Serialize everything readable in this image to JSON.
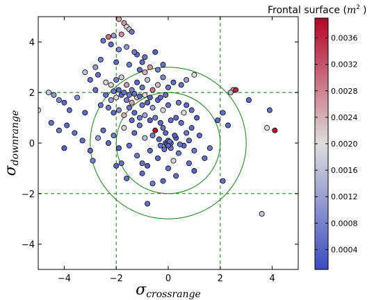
{
  "chart_data": {
    "type": "scatter",
    "title": "",
    "xlabel": "σ",
    "xlabel_sub": "crossrange",
    "ylabel": "σ",
    "ylabel_sub": "downrange",
    "xlim": [
      -5,
      5
    ],
    "ylim": [
      -5,
      5
    ],
    "xticks": [
      -4,
      -2,
      0,
      2,
      4
    ],
    "yticks": [
      -4,
      -2,
      0,
      2,
      4
    ],
    "xtick_labels": [
      "−4",
      "−2",
      "0",
      "2",
      "4"
    ],
    "ytick_labels": [
      "−4",
      "−2",
      "0",
      "2",
      "4"
    ],
    "grid": false,
    "reference_lines": {
      "vertical_x": [
        -2,
        2
      ],
      "horizontal_y": [
        -2,
        2
      ],
      "color": "#228b22",
      "style": "dashed"
    },
    "reference_circles": [
      {
        "cx": 0,
        "cy": 0,
        "r": 2
      },
      {
        "cx": 0,
        "cy": 0,
        "r": 3
      }
    ],
    "colorbar": {
      "title": "Frontal surface (",
      "title_unit": "m",
      "title_unit_exp": "2",
      "title_close": ")",
      "min": 0.0001,
      "max": 0.0039,
      "ticks": [
        0.0004,
        0.0008,
        0.0012,
        0.0016,
        0.002,
        0.0024,
        0.0028,
        0.0032,
        0.0036
      ],
      "tick_labels": [
        "0.0004",
        "0.0008",
        "0.0012",
        "0.0016",
        "0.0020",
        "0.0024",
        "0.0028",
        "0.0032",
        "0.0036"
      ],
      "colormap": "coolwarm",
      "color_low": "#3b4cc0",
      "color_mid": "#dddddd",
      "color_high": "#b40426"
    },
    "series": [
      {
        "points": [
          [
            -1.9,
            4.9,
            0.0025
          ],
          [
            -1.7,
            4.75,
            0.0026
          ],
          [
            -1.6,
            4.6,
            0.0018
          ],
          [
            -1.5,
            4.5,
            0.0023
          ],
          [
            -2.3,
            4.2,
            0.003
          ],
          [
            -2.1,
            4.25,
            0.0012
          ],
          [
            -1.8,
            4.3,
            0.0027
          ],
          [
            -1.4,
            4.4,
            0.0007
          ],
          [
            -2.5,
            4.05,
            0.0006
          ],
          [
            -2.2,
            3.9,
            0.0005
          ],
          [
            -1.9,
            3.7,
            0.0009
          ],
          [
            -1.6,
            3.8,
            0.0011
          ],
          [
            -1.2,
            3.5,
            0.0005
          ],
          [
            -0.9,
            3.4,
            0.0006
          ],
          [
            -0.5,
            3.6,
            0.0004
          ],
          [
            -2.6,
            3.3,
            0.0008
          ],
          [
            -2.8,
            3.0,
            0.0012
          ],
          [
            -1.3,
            3.6,
            0.0007
          ],
          [
            -1.0,
            3.2,
            0.0005
          ],
          [
            -0.7,
            3.0,
            0.0026
          ],
          [
            -0.4,
            2.9,
            0.0008
          ],
          [
            -0.2,
            3.1,
            0.0006
          ],
          [
            -3.2,
            2.8,
            0.0016
          ],
          [
            -3.0,
            2.5,
            0.0006
          ],
          [
            -2.7,
            2.7,
            0.0006
          ],
          [
            -2.4,
            2.4,
            0.0021
          ],
          [
            -2.2,
            2.3,
            0.0019
          ],
          [
            -2.0,
            2.5,
            0.0008
          ],
          [
            -1.8,
            2.6,
            0.0018
          ],
          [
            -1.6,
            2.3,
            0.0026
          ],
          [
            -1.4,
            2.1,
            0.0008
          ],
          [
            -1.2,
            2.4,
            0.0005
          ],
          [
            -1.0,
            2.2,
            0.0007
          ],
          [
            -0.8,
            2.5,
            0.0016
          ],
          [
            -0.6,
            2.1,
            0.0029
          ],
          [
            -0.4,
            2.3,
            0.0023
          ],
          [
            -0.2,
            2.6,
            0.0009
          ],
          [
            0.0,
            2.2,
            0.0006
          ],
          [
            0.2,
            2.4,
            0.0005
          ],
          [
            0.5,
            2.3,
            0.0006
          ],
          [
            0.7,
            2.5,
            0.0012
          ],
          [
            1.0,
            2.7,
            0.002
          ],
          [
            -2.4,
            1.9,
            0.0006
          ],
          [
            -2.2,
            1.7,
            0.0012
          ],
          [
            -2.0,
            1.8,
            0.0021
          ],
          [
            -1.8,
            1.9,
            0.0005
          ],
          [
            -1.6,
            1.7,
            0.0008
          ],
          [
            -1.4,
            1.6,
            0.0025
          ],
          [
            -1.2,
            1.8,
            0.0023
          ],
          [
            -1.0,
            1.5,
            0.0007
          ],
          [
            -0.8,
            1.6,
            0.0004
          ],
          [
            -0.6,
            1.4,
            0.0012
          ],
          [
            -0.4,
            1.7,
            0.0005
          ],
          [
            -0.2,
            1.3,
            0.0019
          ],
          [
            0.0,
            1.5,
            0.0006
          ],
          [
            -2.3,
            1.4,
            0.0007
          ],
          [
            -2.1,
            1.2,
            0.0005
          ],
          [
            -1.9,
            1.3,
            0.0009
          ],
          [
            -1.7,
            1.1,
            0.0024
          ],
          [
            -1.5,
            1.4,
            0.0006
          ],
          [
            -1.3,
            1.2,
            0.0005
          ],
          [
            -1.1,
            1.0,
            0.0007
          ],
          [
            -0.9,
            1.1,
            0.0012
          ],
          [
            -0.7,
            0.9,
            0.0004
          ],
          [
            -0.5,
            1.0,
            0.0007
          ],
          [
            -0.3,
            0.8,
            0.0005
          ],
          [
            -4.6,
            2.0,
            0.0017
          ],
          [
            -4.4,
            1.9,
            0.0011
          ],
          [
            -4.2,
            1.7,
            0.0009
          ],
          [
            -5.0,
            1.3,
            0.0021
          ],
          [
            -4.0,
            1.6,
            0.0005
          ],
          [
            -3.8,
            1.3,
            0.0006
          ],
          [
            -3.5,
            1.8,
            0.001
          ],
          [
            -3.2,
            1.2,
            0.0005
          ],
          [
            -4.5,
            0.8,
            0.0006
          ],
          [
            -4.2,
            0.5,
            0.0007
          ],
          [
            -3.9,
            0.7,
            0.0005
          ],
          [
            -3.6,
            0.4,
            0.0006
          ],
          [
            -4.0,
            -0.2,
            0.0004
          ],
          [
            -3.3,
            0.1,
            0.0006
          ],
          [
            -3.0,
            -0.3,
            0.0005
          ],
          [
            -2.9,
            -0.7,
            0.0008
          ],
          [
            -2.7,
            0.2,
            0.0012
          ],
          [
            -2.5,
            0.5,
            0.0006
          ],
          [
            -2.3,
            0.0,
            0.0005
          ],
          [
            -2.1,
            0.3,
            0.0007
          ],
          [
            -1.9,
            -0.2,
            0.0004
          ],
          [
            -1.7,
            0.6,
            0.0021
          ],
          [
            -1.5,
            -0.1,
            0.0006
          ],
          [
            -1.3,
            0.4,
            0.0005
          ],
          [
            -1.1,
            0.7,
            0.0007
          ],
          [
            -0.9,
            0.2,
            0.0016
          ],
          [
            -0.7,
            -0.3,
            0.0005
          ],
          [
            -0.5,
            0.5,
            0.0038
          ],
          [
            -0.3,
            -0.1,
            0.0006
          ],
          [
            -0.1,
            0.4,
            0.0005
          ],
          [
            0.1,
            -0.2,
            0.0007
          ],
          [
            0.3,
            0.2,
            0.0005
          ],
          [
            0.5,
            0.8,
            0.0006
          ],
          [
            0.7,
            0.4,
            0.0007
          ],
          [
            0.9,
            0.6,
            0.0005
          ],
          [
            0.6,
            1.2,
            0.002
          ],
          [
            0.3,
            1.0,
            0.0005
          ],
          [
            0.1,
            0.9,
            0.0006
          ],
          [
            -1.4,
            0.9,
            0.0005
          ],
          [
            -1.8,
            -0.8,
            0.0006
          ],
          [
            -1.2,
            -0.5,
            0.0007
          ],
          [
            -0.8,
            -0.9,
            0.0004
          ],
          [
            -0.4,
            -0.6,
            0.0005
          ],
          [
            0.0,
            -1.0,
            0.0006
          ],
          [
            0.2,
            -0.7,
            0.0019
          ],
          [
            0.4,
            -0.4,
            0.0007
          ],
          [
            0.6,
            -0.1,
            0.0005
          ],
          [
            0.8,
            0.1,
            0.0006
          ],
          [
            1.0,
            -0.3,
            0.0007
          ],
          [
            1.2,
            0.3,
            0.0005
          ],
          [
            1.4,
            -0.6,
            0.0006
          ],
          [
            1.6,
            -0.2,
            0.0007
          ],
          [
            -0.1,
            0.0,
            0.0005
          ],
          [
            0.0,
            0.1,
            0.0006
          ],
          [
            0.1,
            0.0,
            0.0007
          ],
          [
            -0.05,
            -0.05,
            0.0005
          ],
          [
            0.05,
            0.05,
            0.0006
          ],
          [
            0.0,
            -0.1,
            0.0004
          ],
          [
            -0.2,
            0.6,
            0.0006
          ],
          [
            -0.3,
            1.8,
            0.0005
          ],
          [
            -0.1,
            1.9,
            0.0006
          ],
          [
            0.4,
            1.6,
            0.0007
          ],
          [
            0.7,
            1.5,
            0.0005
          ],
          [
            0.9,
            1.3,
            0.0006
          ],
          [
            1.1,
            1.0,
            0.0004
          ],
          [
            1.9,
            0.9,
            0.0005
          ],
          [
            2.1,
            1.2,
            0.0006
          ],
          [
            2.3,
            0.7,
            0.0005
          ],
          [
            2.5,
            2.1,
            0.0026
          ],
          [
            2.6,
            2.1,
            0.0036
          ],
          [
            2.4,
            2.0,
            0.0016
          ],
          [
            3.1,
            1.7,
            0.0005
          ],
          [
            3.9,
            1.3,
            0.0006
          ],
          [
            3.8,
            0.6,
            0.002
          ],
          [
            4.1,
            0.5,
            0.0038
          ],
          [
            2.1,
            -1.5,
            0.0006
          ],
          [
            3.6,
            -2.8,
            0.0017
          ],
          [
            -0.8,
            -2.4,
            0.0006
          ],
          [
            -0.6,
            -1.6,
            0.0007
          ],
          [
            -1.0,
            -1.2,
            0.0005
          ],
          [
            -1.6,
            -1.4,
            0.0006
          ],
          [
            -2.0,
            -0.9,
            0.0004
          ],
          [
            0.8,
            -0.8,
            0.0006
          ],
          [
            1.0,
            -1.1,
            0.0004
          ],
          [
            0.3,
            -1.3,
            0.0006
          ],
          [
            -0.2,
            -1.5,
            0.0005
          ],
          [
            -1.0,
            -0.8,
            0.0006
          ],
          [
            -0.6,
            0.3,
            0.0007
          ],
          [
            -0.35,
            0.15,
            0.0005
          ],
          [
            -0.15,
            -0.25,
            0.0006
          ],
          [
            0.25,
            0.3,
            0.0004
          ],
          [
            0.45,
            -0.05,
            0.0007
          ],
          [
            -2.8,
            2.1,
            0.0006
          ],
          [
            -2.6,
            1.5,
            0.0007
          ],
          [
            -0.9,
            2.8,
            0.0024
          ],
          [
            -1.1,
            2.9,
            0.0006
          ],
          [
            -1.5,
            3.1,
            0.0007
          ],
          [
            -2.0,
            3.2,
            0.0005
          ],
          [
            -1.7,
            2.0,
            0.0006
          ],
          [
            -1.9,
            2.1,
            0.0005
          ],
          [
            -1.5,
            1.9,
            0.0007
          ],
          [
            -1.3,
            1.95,
            0.0006
          ],
          [
            -1.1,
            1.85,
            0.0005
          ],
          [
            -0.9,
            1.9,
            0.002
          ],
          [
            -0.7,
            1.8,
            0.0004
          ],
          [
            -2.1,
            2.05,
            0.0007
          ]
        ]
      }
    ]
  }
}
